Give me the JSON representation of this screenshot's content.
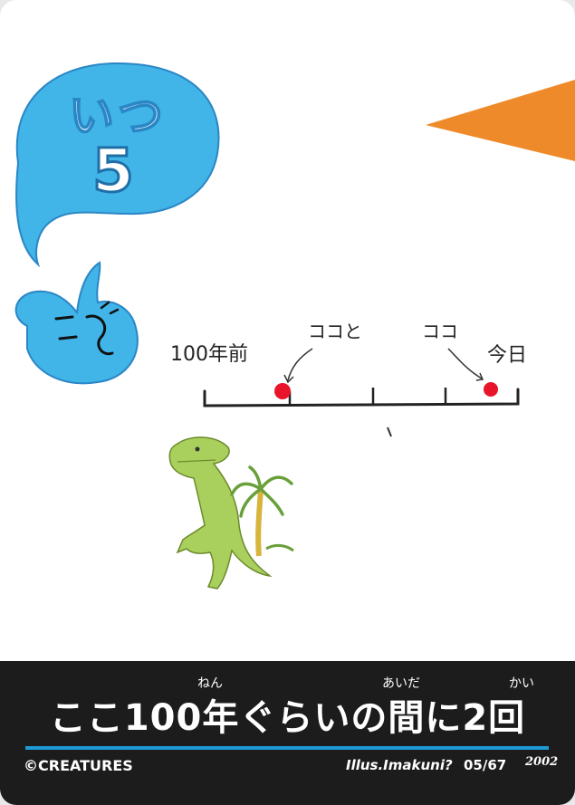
{
  "card": {
    "category_label": "いつ",
    "number": "5",
    "main_text": "ここ100年ぐらいの間に2回",
    "ruby": {
      "nen": "ねん",
      "aida": "あいだ",
      "kai": "かい"
    },
    "copyright": "©CREATURES",
    "illustrator": "Illus.Imakuni?",
    "card_number": "05/67",
    "logo_text": "2002"
  },
  "drawing": {
    "label_left": "100年前",
    "label_mid": "ココと",
    "label_right_pointer": "ココ",
    "label_today": "今日"
  },
  "colors": {
    "bubble_blue": "#41b4e8",
    "orange_accent": "#ef8a2a",
    "band_black": "#1c1c1c",
    "rule_blue": "#1e9ad6",
    "marker_red": "#e8142a",
    "dino_green": "#a9cf5c"
  }
}
